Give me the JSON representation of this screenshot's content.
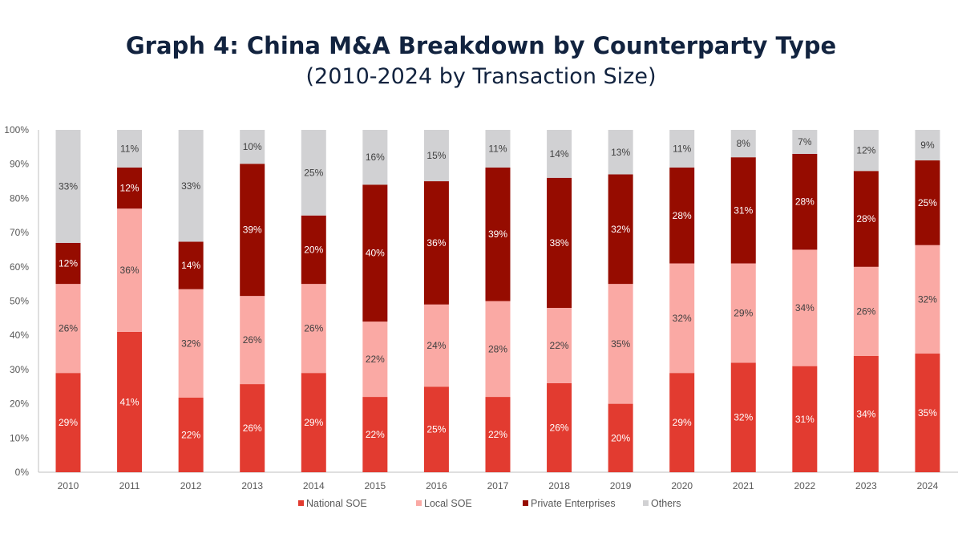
{
  "chart_data": {
    "type": "bar",
    "stacked": true,
    "title": "Graph 4: China M&A Breakdown by Counterparty Type",
    "subtitle": "(2010-2024 by Transaction Size)",
    "xlabel": "",
    "ylabel": "",
    "ylim": [
      0,
      100
    ],
    "yticks": [
      "0%",
      "10%",
      "20%",
      "30%",
      "40%",
      "50%",
      "60%",
      "70%",
      "80%",
      "90%",
      "100%"
    ],
    "grid": false,
    "legend": "bottom",
    "categories": [
      "2010",
      "2011",
      "2012",
      "2013",
      "2014",
      "2015",
      "2016",
      "2017",
      "2018",
      "2019",
      "2020",
      "2021",
      "2022",
      "2023",
      "2024"
    ],
    "series": [
      {
        "name": "National SOE",
        "color": "#E23B30",
        "label_color": "#ffffff",
        "values": [
          29,
          41,
          22,
          26,
          29,
          22,
          25,
          22,
          26,
          20,
          29,
          32,
          31,
          34,
          35
        ]
      },
      {
        "name": "Local SOE",
        "color": "#FAA9A4",
        "label_color": "#404040",
        "values": [
          26,
          36,
          32,
          26,
          26,
          22,
          24,
          28,
          22,
          35,
          32,
          29,
          34,
          26,
          32
        ]
      },
      {
        "name": "Private Enterprises",
        "color": "#960C00",
        "label_color": "#ffffff",
        "values": [
          12,
          12,
          14,
          39,
          20,
          40,
          36,
          39,
          38,
          32,
          28,
          31,
          28,
          28,
          25
        ]
      },
      {
        "name": "Others",
        "color": "#D1D1D3",
        "label_color": "#404040",
        "values": [
          33,
          11,
          33,
          10,
          25,
          16,
          15,
          11,
          14,
          13,
          11,
          8,
          7,
          12,
          9
        ]
      }
    ]
  }
}
